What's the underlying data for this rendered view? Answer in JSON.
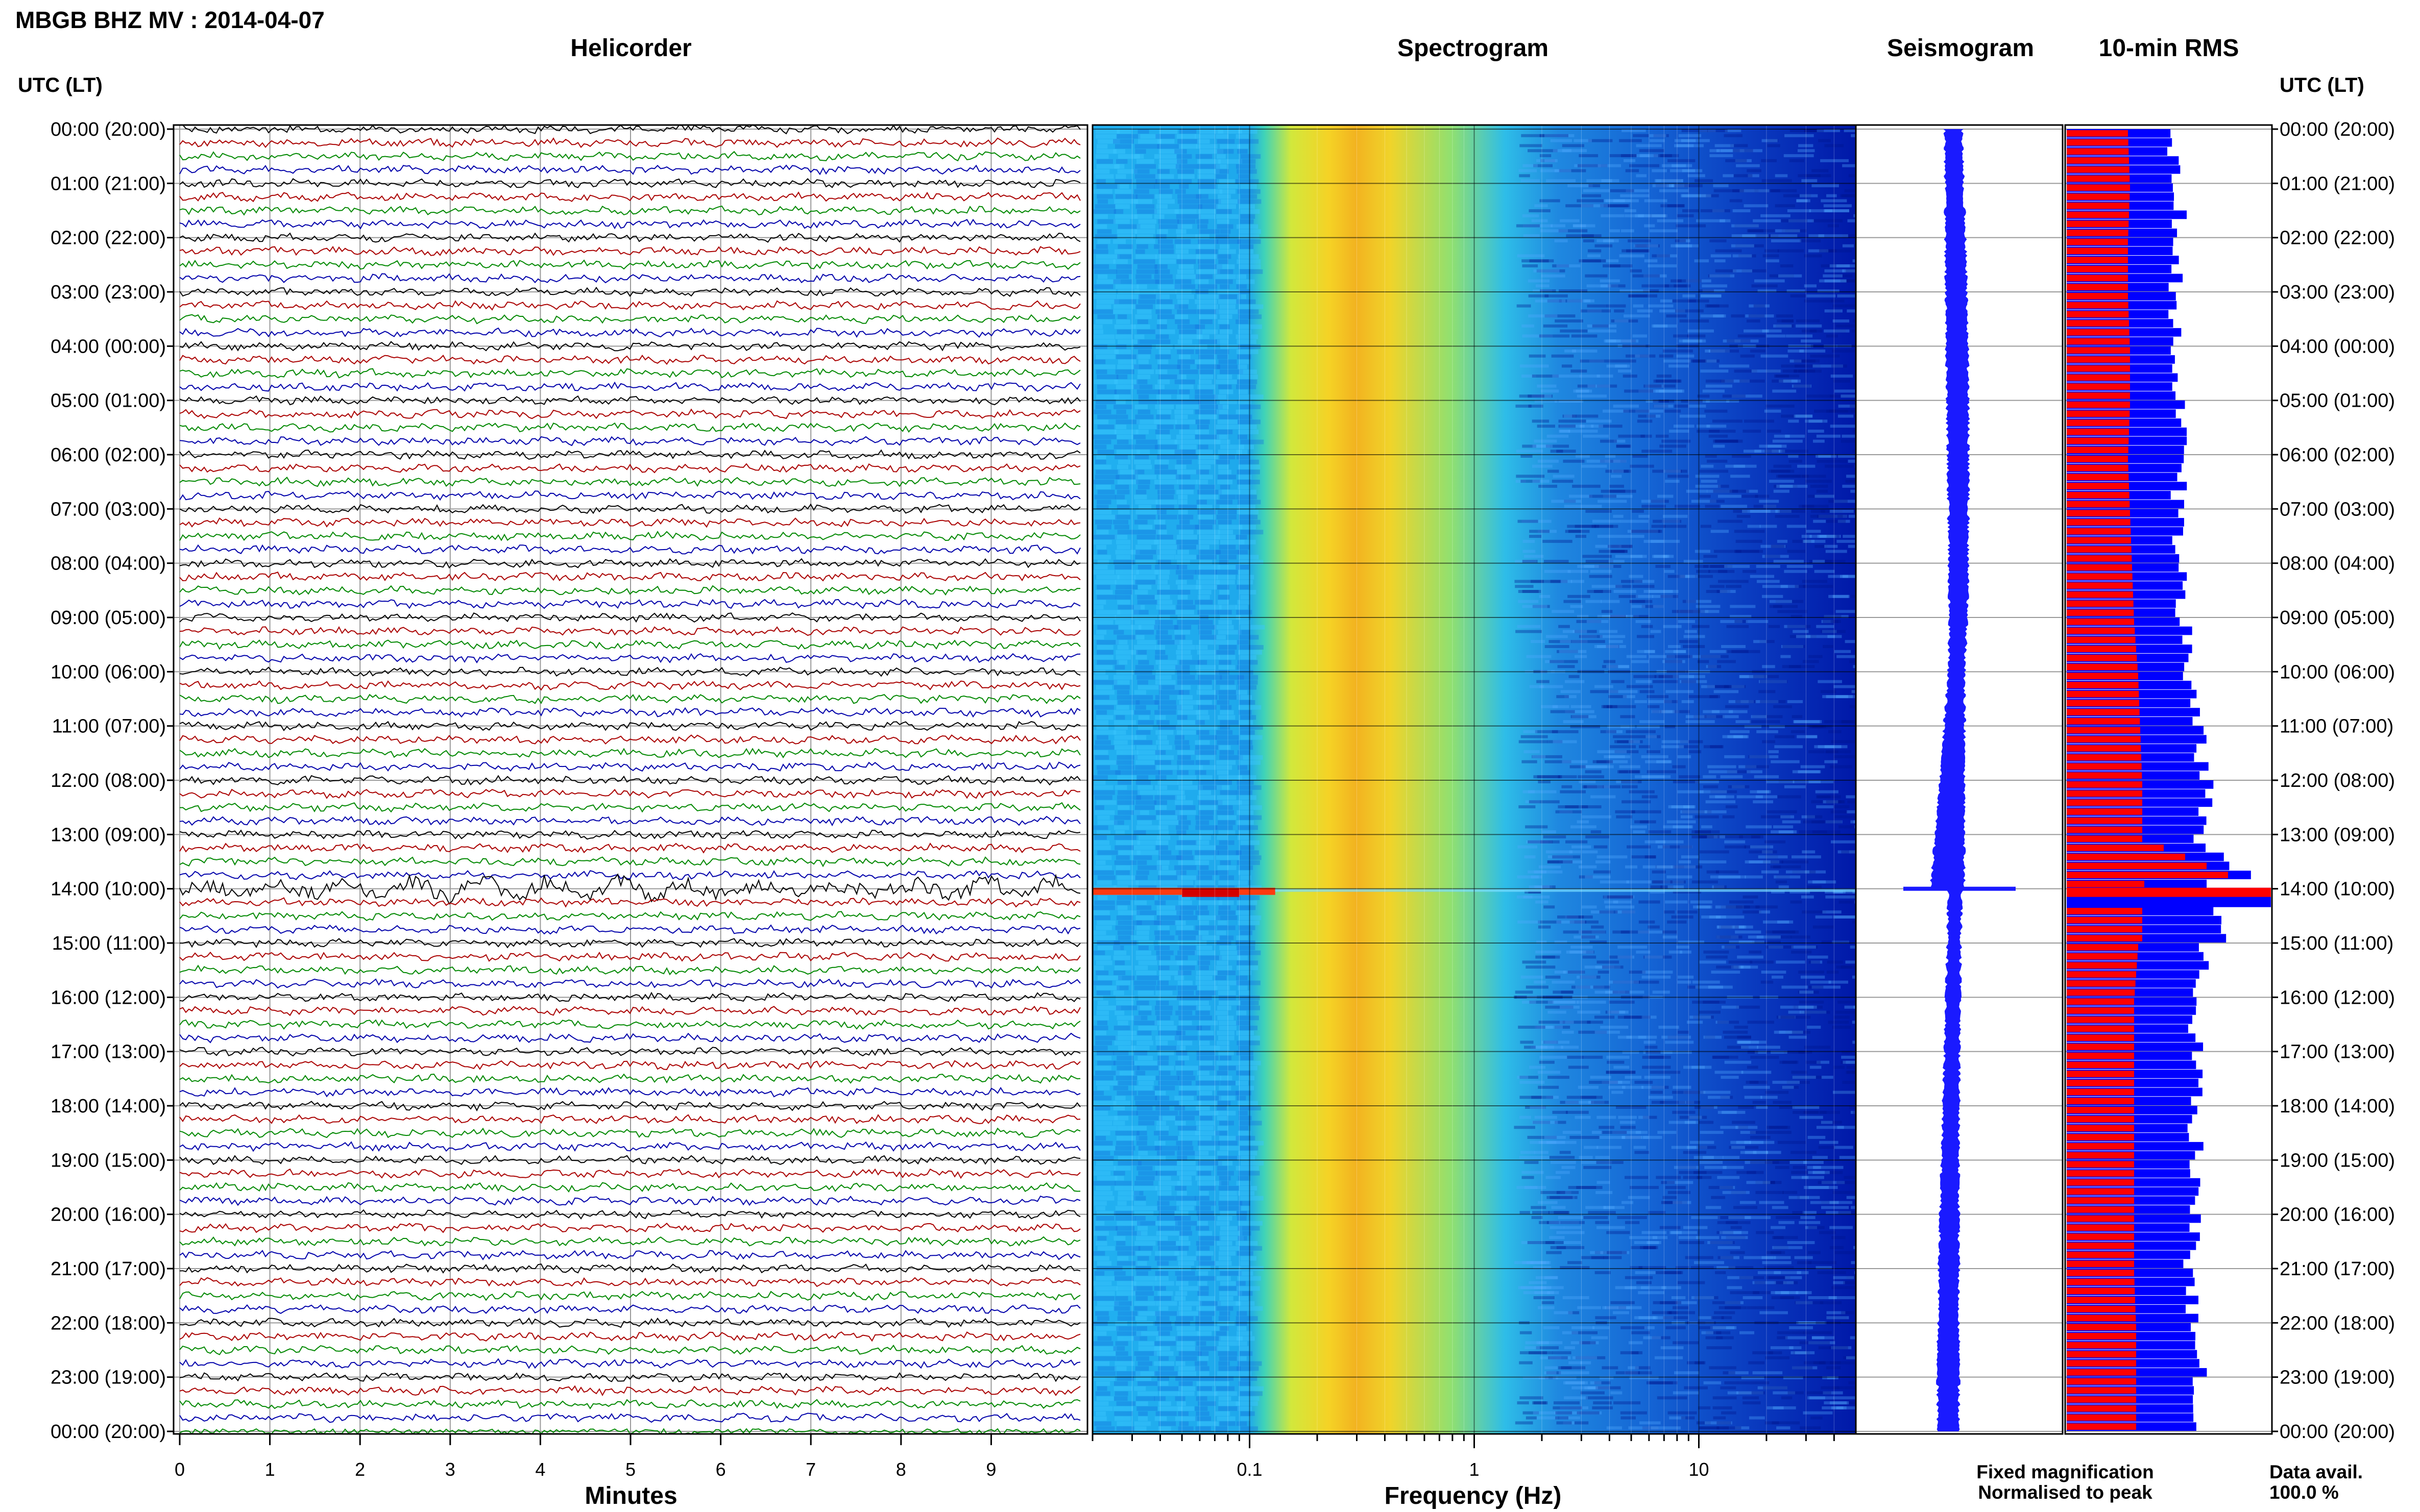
{
  "header": {
    "title": "MBGB BHZ MV : 2014-04-07"
  },
  "panels": {
    "helicorder": "Helicorder",
    "spectrogram": "Spectrogram",
    "seismogram": "Seismogram",
    "rms": "10-min RMS"
  },
  "axis_labels": {
    "left_time": "UTC (LT)",
    "right_time": "UTC (LT)",
    "helicorder_x": "Minutes",
    "spectrogram_x": "Frequency (Hz)"
  },
  "legend": {
    "fixed": "Fixed magnification",
    "normalised": "Normalised to peak",
    "fixed_color": "#0000ff",
    "normalised_color": "#ff0000"
  },
  "data_availability": {
    "label": "Data avail.",
    "value": "100.0 %"
  },
  "chart_data": [
    {
      "type": "line",
      "panel": "Helicorder",
      "xlabel": "Minutes",
      "x_ticks": [
        "0",
        "1",
        "2",
        "3",
        "4",
        "5",
        "6",
        "7",
        "8",
        "9"
      ],
      "xlim": [
        0,
        10
      ],
      "row_labels": [
        "00:00 (20:00)",
        "01:00 (21:00)",
        "02:00 (22:00)",
        "03:00 (23:00)",
        "04:00 (00:00)",
        "05:00 (01:00)",
        "06:00 (02:00)",
        "07:00 (03:00)",
        "08:00 (04:00)",
        "09:00 (05:00)",
        "10:00 (06:00)",
        "11:00 (07:00)",
        "12:00 (08:00)",
        "13:00 (09:00)",
        "14:00 (10:00)",
        "15:00 (11:00)",
        "16:00 (12:00)",
        "17:00 (13:00)",
        "18:00 (14:00)",
        "19:00 (15:00)",
        "20:00 (16:00)",
        "21:00 (17:00)",
        "22:00 (18:00)",
        "23:00 (19:00)",
        "00:00 (20:00)"
      ],
      "trace_colors": [
        "#000000",
        "#aa0000",
        "#008800",
        "#0000aa"
      ],
      "event_time_utc": "14:00"
    },
    {
      "type": "heatmap",
      "panel": "Spectrogram",
      "xlabel": "Frequency (Hz)",
      "x_scale": "log",
      "x_ticks": [
        "0.1",
        "1",
        "10"
      ],
      "xlim": [
        0.02,
        50
      ],
      "peak_frequency_hz": 0.35,
      "event_time_utc": "14:00"
    },
    {
      "type": "line",
      "panel": "Seismogram",
      "event_time_utc": "14:00"
    },
    {
      "type": "bar",
      "panel": "10-min RMS",
      "series": [
        {
          "name": "Fixed magnification",
          "color": "#0000ff"
        },
        {
          "name": "Normalised to peak",
          "color": "#ff0000"
        }
      ],
      "hourly_fixed_rel": [
        0.5,
        0.54,
        0.56,
        0.53,
        0.52,
        0.55,
        0.56,
        0.54,
        0.55,
        0.57,
        0.6,
        0.64,
        0.68,
        0.66,
        1.0,
        0.68,
        0.62,
        0.64,
        0.63,
        0.63,
        0.62,
        0.6,
        0.63,
        0.65,
        0.65
      ],
      "hourly_norm_rel": [
        0.3,
        0.31,
        0.3,
        0.3,
        0.31,
        0.31,
        0.3,
        0.31,
        0.32,
        0.33,
        0.35,
        0.36,
        0.37,
        0.37,
        1.0,
        0.35,
        0.33,
        0.33,
        0.33,
        0.33,
        0.33,
        0.33,
        0.34,
        0.34,
        0.34
      ],
      "event_time_utc": "14:00"
    }
  ]
}
